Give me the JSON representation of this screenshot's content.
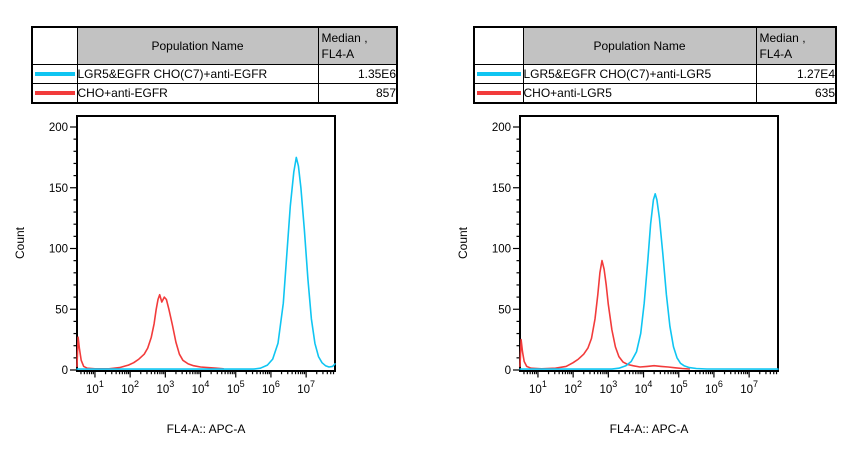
{
  "panels": [
    {
      "table": {
        "population_header": "Population Name",
        "median_header_line1": "Median ,",
        "median_header_line2": "FL4-A",
        "rows": [
          {
            "swatch_icon": "cyan-line-swatch",
            "swatch_color": "#0FC5F2",
            "name": "LGR5&EGFR CHO(C7)+anti-EGFR",
            "value": "1.35E6"
          },
          {
            "swatch_icon": "red-line-swatch",
            "swatch_color": "#F23B3B",
            "name": "CHO+anti-EGFR",
            "value": "857"
          }
        ]
      }
    },
    {
      "table": {
        "population_header": "Population Name",
        "median_header_line1": "Median ,",
        "median_header_line2": "FL4-A",
        "rows": [
          {
            "swatch_icon": "cyan-line-swatch",
            "swatch_color": "#0FC5F2",
            "name": "LGR5&EGFR CHO(C7)+anti-LGR5",
            "value": "1.27E4"
          },
          {
            "swatch_icon": "red-line-swatch",
            "swatch_color": "#F23B3B",
            "name": "CHO+anti-LGR5",
            "value": "635"
          }
        ]
      }
    }
  ],
  "chart_data": [
    {
      "type": "line",
      "title": "",
      "xlabel": "FL4-A:: APC-A",
      "ylabel": "Count",
      "x_scale": "log10",
      "xlim_exp": [
        0.49,
        7.82
      ],
      "ylim": [
        0,
        209
      ],
      "yticks": [
        0,
        50,
        100,
        150,
        200
      ],
      "y_minor_step": 10,
      "xtick_decades": [
        1,
        2,
        3,
        4,
        5,
        6,
        7
      ],
      "grid": "off",
      "legend": "table-above",
      "frame_color": "#000000",
      "series": [
        {
          "name": "CHO+anti-EGFR",
          "color": "#F23B3B",
          "median_fl4a": "857",
          "points": [
            [
              0.49,
              3
            ],
            [
              0.52,
              27
            ],
            [
              0.56,
              17
            ],
            [
              0.61,
              8
            ],
            [
              0.68,
              3
            ],
            [
              0.78,
              1.5
            ],
            [
              1.0,
              1
            ],
            [
              1.4,
              1
            ],
            [
              1.7,
              2
            ],
            [
              1.95,
              4
            ],
            [
              2.1,
              6
            ],
            [
              2.25,
              9
            ],
            [
              2.4,
              13
            ],
            [
              2.5,
              18
            ],
            [
              2.6,
              27
            ],
            [
              2.68,
              38
            ],
            [
              2.74,
              50
            ],
            [
              2.79,
              58
            ],
            [
              2.84,
              62
            ],
            [
              2.9,
              56
            ],
            [
              2.97,
              60
            ],
            [
              3.03,
              58
            ],
            [
              3.1,
              50
            ],
            [
              3.2,
              37
            ],
            [
              3.3,
              23
            ],
            [
              3.4,
              13
            ],
            [
              3.5,
              8
            ],
            [
              3.65,
              5
            ],
            [
              3.8,
              3.5
            ],
            [
              4.0,
              2.5
            ],
            [
              4.2,
              2
            ],
            [
              4.45,
              1.5
            ],
            [
              4.65,
              1
            ]
          ]
        },
        {
          "name": "LGR5&EGFR CHO(C7)+anti-EGFR",
          "color": "#0FC5F2",
          "median_fl4a": "1.35E6",
          "points": [
            [
              0.49,
              0.7
            ],
            [
              5.5,
              0.7
            ],
            [
              5.7,
              1.5
            ],
            [
              5.9,
              4
            ],
            [
              6.05,
              9
            ],
            [
              6.2,
              22
            ],
            [
              6.35,
              55
            ],
            [
              6.45,
              95
            ],
            [
              6.55,
              135
            ],
            [
              6.65,
              163
            ],
            [
              6.72,
              175
            ],
            [
              6.78,
              168
            ],
            [
              6.85,
              150
            ],
            [
              6.95,
              115
            ],
            [
              7.05,
              75
            ],
            [
              7.15,
              42
            ],
            [
              7.25,
              22
            ],
            [
              7.35,
              11
            ],
            [
              7.45,
              6
            ],
            [
              7.55,
              3.5
            ],
            [
              7.65,
              2.5
            ],
            [
              7.75,
              3
            ],
            [
              7.82,
              5
            ]
          ]
        }
      ]
    },
    {
      "type": "line",
      "title": "",
      "xlabel": "FL4-A:: APC-A",
      "ylabel": "Count",
      "x_scale": "log10",
      "xlim_exp": [
        0.49,
        7.82
      ],
      "ylim": [
        0,
        209
      ],
      "yticks": [
        0,
        50,
        100,
        150,
        200
      ],
      "y_minor_step": 10,
      "xtick_decades": [
        1,
        2,
        3,
        4,
        5,
        6,
        7
      ],
      "grid": "off",
      "legend": "table-above",
      "frame_color": "#000000",
      "series": [
        {
          "name": "CHO+anti-LGR5",
          "color": "#F23B3B",
          "median_fl4a": "635",
          "points": [
            [
              0.49,
              3
            ],
            [
              0.52,
              25
            ],
            [
              0.56,
              15
            ],
            [
              0.61,
              7
            ],
            [
              0.68,
              3
            ],
            [
              0.8,
              1.5
            ],
            [
              1.1,
              1
            ],
            [
              1.5,
              1.5
            ],
            [
              1.8,
              3
            ],
            [
              2.0,
              6
            ],
            [
              2.15,
              9
            ],
            [
              2.3,
              13
            ],
            [
              2.42,
              18
            ],
            [
              2.52,
              26
            ],
            [
              2.62,
              42
            ],
            [
              2.7,
              62
            ],
            [
              2.76,
              80
            ],
            [
              2.82,
              90
            ],
            [
              2.88,
              83
            ],
            [
              2.94,
              70
            ],
            [
              3.0,
              54
            ],
            [
              3.1,
              33
            ],
            [
              3.2,
              19
            ],
            [
              3.3,
              11
            ],
            [
              3.42,
              6.5
            ],
            [
              3.55,
              4.5
            ],
            [
              3.7,
              3.5
            ],
            [
              3.9,
              2.5
            ],
            [
              4.1,
              3
            ],
            [
              4.3,
              3.5
            ],
            [
              4.5,
              3
            ],
            [
              4.7,
              2.5
            ],
            [
              4.9,
              1.8
            ],
            [
              5.1,
              1.2
            ],
            [
              5.3,
              0.8
            ]
          ]
        },
        {
          "name": "LGR5&EGFR CHO(C7)+anti-LGR5",
          "color": "#0FC5F2",
          "median_fl4a": "1.27E4",
          "points": [
            [
              0.49,
              0.7
            ],
            [
              3.1,
              0.7
            ],
            [
              3.3,
              1.5
            ],
            [
              3.5,
              3.5
            ],
            [
              3.65,
              7
            ],
            [
              3.8,
              15
            ],
            [
              3.92,
              30
            ],
            [
              4.02,
              55
            ],
            [
              4.12,
              90
            ],
            [
              4.2,
              120
            ],
            [
              4.28,
              140
            ],
            [
              4.33,
              145
            ],
            [
              4.38,
              140
            ],
            [
              4.45,
              125
            ],
            [
              4.55,
              95
            ],
            [
              4.65,
              62
            ],
            [
              4.75,
              36
            ],
            [
              4.85,
              19
            ],
            [
              4.95,
              10
            ],
            [
              5.05,
              5.5
            ],
            [
              5.15,
              3.5
            ],
            [
              5.3,
              2
            ],
            [
              5.5,
              1.2
            ],
            [
              5.8,
              0.8
            ],
            [
              7.82,
              0.7
            ]
          ]
        }
      ]
    }
  ]
}
